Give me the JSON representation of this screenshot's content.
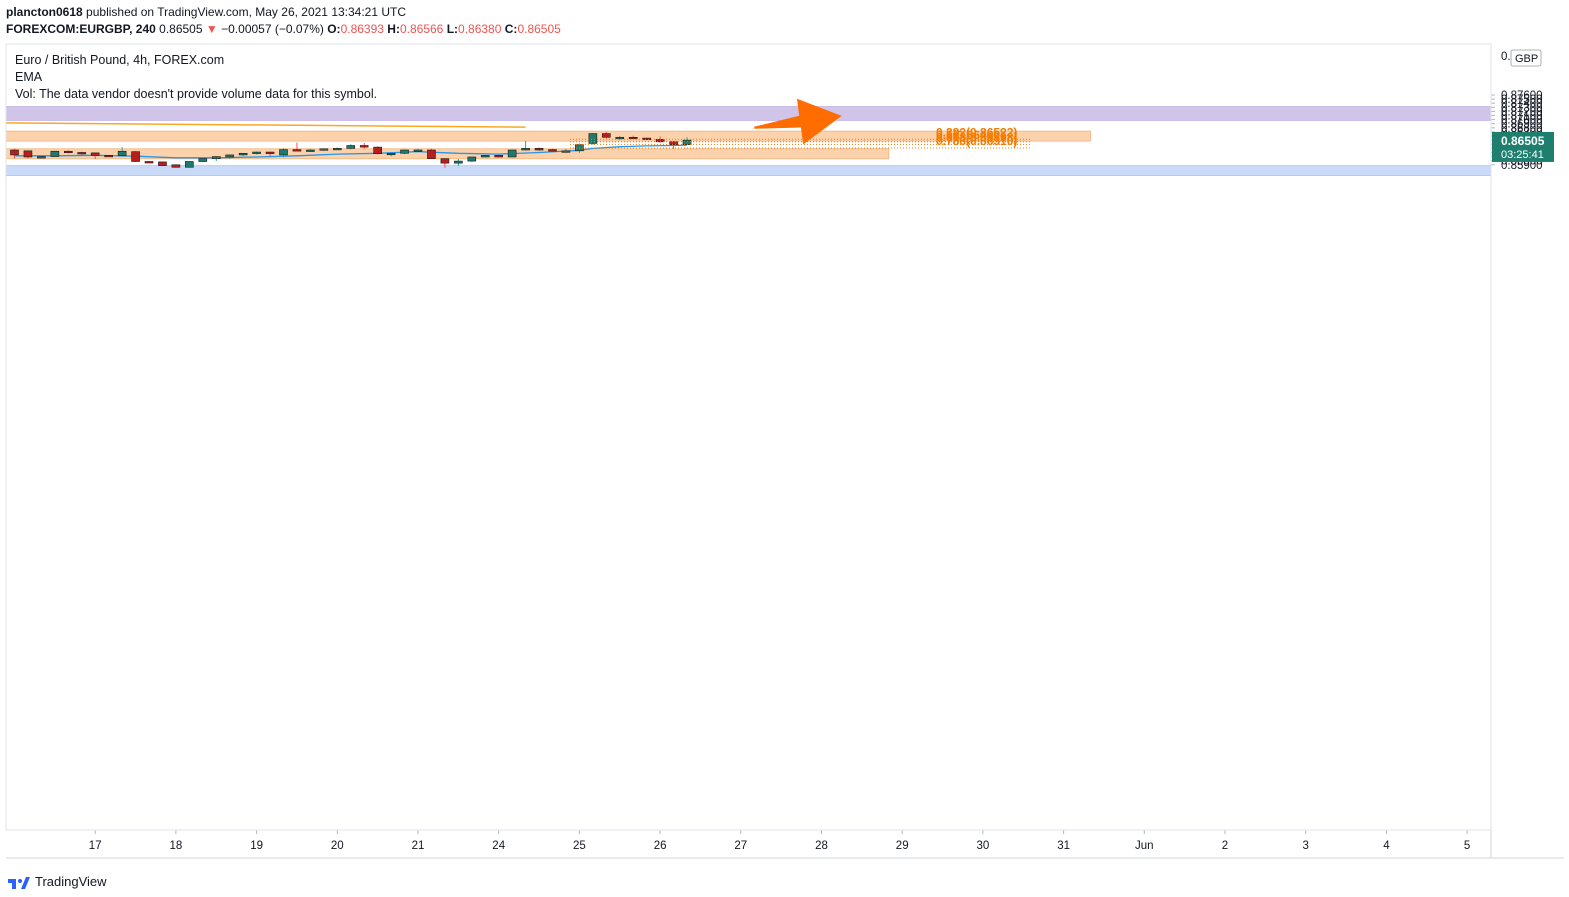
{
  "header": {
    "line1_user": "plancton0618",
    "line1_rest": "published on TradingView.com, May 26, 2021 13:34:21 UTC",
    "symbol": "FOREXCOM:EURGBP, 240",
    "last": "0.86505",
    "change": "−0.00057 (−0.07%)",
    "o_label": "O:",
    "o_val": "0.86393",
    "h_label": "H:",
    "h_val": "0.86566",
    "l_label": "L:",
    "l_val": "0.86380",
    "c_label": "C:",
    "c_val": "0.86505"
  },
  "legend": {
    "title": "Euro / British Pound, 4h, FOREX.com",
    "ema": "EMA",
    "vol": "Vol: The data vendor doesn't provide volume data for this symbol."
  },
  "price_badge": {
    "price": "0.86505",
    "timer": "03:25:41"
  },
  "currency": "GBP",
  "footer": {
    "brand": "TradingView"
  },
  "fib_levels": [
    {
      "label": "0.382(0.86522)",
      "price": 0.86522
    },
    {
      "label": "0.5(0.86460)",
      "price": 0.8646
    },
    {
      "label": "0.618(0.86398)",
      "price": 0.86398
    },
    {
      "label": "0.786(0.86310)",
      "price": 0.8631
    }
  ],
  "colors": {
    "up": "#26a69a",
    "down": "#ef5350",
    "up_fill": "#1f7a6d",
    "down_fill": "#b5201c",
    "ema": "#2196f3",
    "zone_purple": "#d1c4e9",
    "zone_orange": "#fbd2ac",
    "zone_blue": "#c9daf8",
    "fib": "#f57c00",
    "arrow": "#ff6d00"
  },
  "chart_data": {
    "type": "candlestick",
    "title": "Euro / British Pound, 4h, FOREX.com",
    "ylim": [
      0.8584,
      0.8773
    ],
    "y_ticks": [
      "0.87600",
      "0.87500",
      "0.87400",
      "0.87300",
      "0.87200",
      "0.87100",
      "0.87000",
      "0.86900",
      "0.86800",
      "0.86700",
      "0.86600",
      "0.86500",
      "0.86400",
      "0.86300",
      "0.86200",
      "0.86100",
      "0.86000",
      "0.85900"
    ],
    "y_tick_values": [
      0.876,
      0.875,
      0.874,
      0.873,
      0.872,
      0.871,
      0.87,
      0.869,
      0.868,
      0.867,
      0.866,
      0.865,
      0.864,
      0.863,
      0.862,
      0.861,
      0.86,
      0.859
    ],
    "x_ticks": [
      "17",
      "18",
      "19",
      "20",
      "21",
      "24",
      "25",
      "26",
      "27",
      "28",
      "29",
      "30",
      "31",
      "Jun",
      "2",
      "3",
      "4",
      "5"
    ],
    "x_tick_index": [
      6,
      12,
      18,
      24,
      30,
      36,
      42,
      48,
      54,
      60,
      66,
      72,
      78,
      84,
      90,
      96,
      102,
      108
    ],
    "candles": [
      [
        0,
        0.8626,
        0.8614,
        0.8629,
        0.8606
      ],
      [
        1,
        0.8624,
        0.8609,
        0.8625,
        0.8606
      ],
      [
        2,
        0.8609,
        0.861,
        0.8613,
        0.8606
      ],
      [
        3,
        0.861,
        0.8623,
        0.8624,
        0.8609
      ],
      [
        4,
        0.8623,
        0.862,
        0.8625,
        0.8618
      ],
      [
        5,
        0.862,
        0.8619,
        0.8622,
        0.8614
      ],
      [
        6,
        0.8619,
        0.8613,
        0.8615,
        0.8604
      ],
      [
        7,
        0.8613,
        0.8612,
        0.8614,
        0.8611
      ],
      [
        8,
        0.8612,
        0.8623,
        0.8633,
        0.861
      ],
      [
        9,
        0.8622,
        0.8598,
        0.8623,
        0.8597
      ],
      [
        10,
        0.8598,
        0.8596,
        0.8599,
        0.8595
      ],
      [
        11,
        0.8597,
        0.8588,
        0.8597,
        0.8587
      ],
      [
        12,
        0.859,
        0.8584,
        0.8591,
        0.8583
      ],
      [
        13,
        0.8584,
        0.8598,
        0.8599,
        0.8583
      ],
      [
        14,
        0.8598,
        0.8605,
        0.8607,
        0.8597
      ],
      [
        15,
        0.8605,
        0.861,
        0.8611,
        0.8599
      ],
      [
        16,
        0.8609,
        0.8614,
        0.8615,
        0.8604
      ],
      [
        17,
        0.8614,
        0.8618,
        0.8618,
        0.8611
      ],
      [
        18,
        0.8618,
        0.8621,
        0.8622,
        0.8615
      ],
      [
        19,
        0.8621,
        0.8619,
        0.8622,
        0.8611
      ],
      [
        20,
        0.8614,
        0.8627,
        0.863,
        0.8608
      ],
      [
        21,
        0.8627,
        0.8625,
        0.8644,
        0.8624
      ],
      [
        22,
        0.8625,
        0.8626,
        0.8628,
        0.8623
      ],
      [
        23,
        0.8626,
        0.8629,
        0.863,
        0.8624
      ],
      [
        24,
        0.8629,
        0.863,
        0.8632,
        0.8628
      ],
      [
        25,
        0.863,
        0.8637,
        0.864,
        0.8628
      ],
      [
        26,
        0.8637,
        0.8633,
        0.8643,
        0.8629
      ],
      [
        27,
        0.8633,
        0.8617,
        0.8635,
        0.8615
      ],
      [
        28,
        0.8617,
        0.8618,
        0.8621,
        0.8611
      ],
      [
        29,
        0.8618,
        0.8626,
        0.8627,
        0.8616
      ],
      [
        30,
        0.8626,
        0.8626,
        0.8629,
        0.8624
      ],
      [
        31,
        0.8626,
        0.8605,
        0.8629,
        0.8604
      ],
      [
        32,
        0.8605,
        0.8594,
        0.8606,
        0.8583
      ],
      [
        33,
        0.8594,
        0.8599,
        0.8604,
        0.8587
      ],
      [
        34,
        0.8599,
        0.8609,
        0.8609,
        0.8597
      ],
      [
        35,
        0.8609,
        0.8613,
        0.8614,
        0.8608
      ],
      [
        36,
        0.8613,
        0.8609,
        0.8614,
        0.8608
      ],
      [
        37,
        0.8609,
        0.8626,
        0.8626,
        0.8609
      ],
      [
        38,
        0.8626,
        0.863,
        0.8648,
        0.8625
      ],
      [
        39,
        0.863,
        0.8626,
        0.8632,
        0.8624
      ],
      [
        40,
        0.8627,
        0.8625,
        0.8629,
        0.8624
      ],
      [
        41,
        0.8624,
        0.8624,
        0.8629,
        0.8622
      ],
      [
        42,
        0.8624,
        0.8639,
        0.8642,
        0.8619
      ],
      [
        43,
        0.8642,
        0.8666,
        0.8667,
        0.8639
      ],
      [
        44,
        0.8666,
        0.8657,
        0.867,
        0.8654
      ],
      [
        45,
        0.8657,
        0.8657,
        0.866,
        0.8651
      ],
      [
        46,
        0.8657,
        0.8655,
        0.8661,
        0.8653
      ],
      [
        47,
        0.8655,
        0.8653,
        0.8656,
        0.8651
      ],
      [
        48,
        0.8652,
        0.8646,
        0.8659,
        0.8644
      ],
      [
        49,
        0.8646,
        0.8639,
        0.8648,
        0.8629
      ],
      [
        50,
        0.8639,
        0.865,
        0.8657,
        0.8638
      ]
    ],
    "ema": [
      [
        0,
        0.8612
      ],
      [
        3,
        0.8612
      ],
      [
        6,
        0.8613
      ],
      [
        9,
        0.8611
      ],
      [
        12,
        0.8607
      ],
      [
        15,
        0.8607
      ],
      [
        18,
        0.8609
      ],
      [
        21,
        0.8612
      ],
      [
        24,
        0.8616
      ],
      [
        27,
        0.8618
      ],
      [
        30,
        0.8622
      ],
      [
        33,
        0.8618
      ],
      [
        36,
        0.8616
      ],
      [
        39,
        0.862
      ],
      [
        42,
        0.8625
      ],
      [
        43,
        0.863
      ],
      [
        45,
        0.8634
      ],
      [
        47,
        0.8636
      ],
      [
        49,
        0.8637
      ],
      [
        50,
        0.8638
      ]
    ],
    "zones": [
      {
        "name": "purple-zone",
        "top": 0.8732,
        "bottom": 0.8698,
        "from": -1,
        "to": "end"
      },
      {
        "name": "upper-orange-zone",
        "top": 0.8672,
        "bottom": 0.8669,
        "from": -1,
        "to": 80
      },
      {
        "name": "lower-orange-zone",
        "top": 0.8629,
        "bottom": 0.8626,
        "from": -1,
        "to": 65
      },
      {
        "name": "blue-zone",
        "top": 0.8588,
        "bottom": 0.8581,
        "from": -1,
        "to": "end"
      }
    ],
    "trendline": {
      "x1": -1,
      "y1": 0.8692,
      "x2": 38,
      "y2": 0.86817
    },
    "arrow": {
      "x1": 55,
      "y1": 0.868,
      "x2": 61.5,
      "y2": 0.8709
    }
  }
}
